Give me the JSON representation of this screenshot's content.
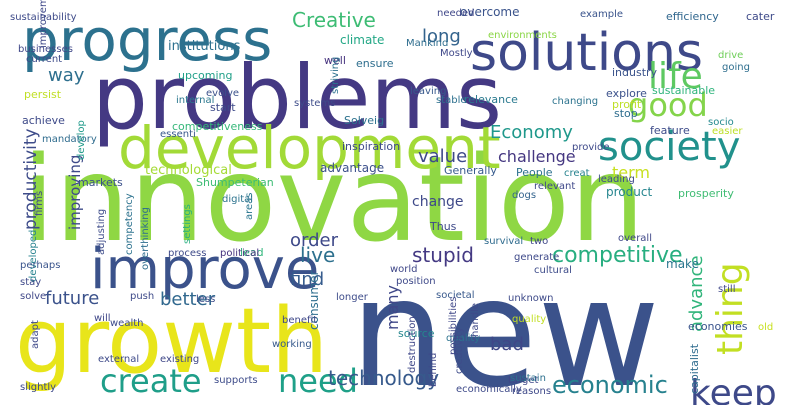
{
  "words": [
    {
      "text": "innovation",
      "color": "#8fd744",
      "orient": "h"
    },
    {
      "text": "new",
      "color": "#3b528b",
      "orient": "h"
    },
    {
      "text": "problems",
      "color": "#443983",
      "orient": "h"
    },
    {
      "text": "growth",
      "color": "#e8e51a",
      "orient": "h"
    },
    {
      "text": "development",
      "color": "#a2da37",
      "orient": "h"
    },
    {
      "text": "solutions",
      "color": "#3e4989",
      "orient": "h"
    },
    {
      "text": "progress",
      "color": "#2c718e",
      "orient": "h"
    },
    {
      "text": "improve",
      "color": "#3b528b",
      "orient": "h"
    },
    {
      "text": "society",
      "color": "#21918c",
      "orient": "h"
    },
    {
      "text": "life",
      "color": "#5ec962",
      "orient": "h"
    },
    {
      "text": "create",
      "color": "#1f9e89",
      "orient": "h"
    },
    {
      "text": "need",
      "color": "#1fa088",
      "orient": "h"
    },
    {
      "text": "keep",
      "color": "#3e4989",
      "orient": "h"
    },
    {
      "text": "good",
      "color": "#84d44b",
      "orient": "h"
    },
    {
      "text": "thing",
      "color": "#c2df23",
      "orient": "v"
    },
    {
      "text": "economic",
      "color": "#26818e",
      "orient": "h"
    },
    {
      "text": "technology",
      "color": "#375a8c",
      "orient": "h"
    },
    {
      "text": "competitive",
      "color": "#28ae80",
      "orient": "h"
    },
    {
      "text": "Economy",
      "color": "#1f988b",
      "orient": "h"
    },
    {
      "text": "future",
      "color": "#3b528b",
      "orient": "h"
    },
    {
      "text": "better",
      "color": "#31688e",
      "orient": "h"
    },
    {
      "text": "stupid",
      "color": "#443983",
      "orient": "h"
    },
    {
      "text": "Creative",
      "color": "#3dbc74",
      "orient": "h"
    },
    {
      "text": "long",
      "color": "#33638d",
      "orient": "h"
    },
    {
      "text": "way",
      "color": "#2e6f8e",
      "orient": "h"
    },
    {
      "text": "live",
      "color": "#2d708e",
      "orient": "h"
    },
    {
      "text": "value",
      "color": "#3e4a89",
      "orient": "h"
    },
    {
      "text": "find",
      "color": "#365c8d",
      "orient": "h"
    },
    {
      "text": "order",
      "color": "#3e4989",
      "orient": "h"
    },
    {
      "text": "many",
      "color": "#3f4788",
      "orient": "v"
    },
    {
      "text": "bad",
      "color": "#3f4788",
      "orient": "h"
    },
    {
      "text": "advance",
      "color": "#31b57b",
      "orient": "v"
    },
    {
      "text": "productivity",
      "color": "#3e4c8a",
      "orient": "v"
    },
    {
      "text": "improving",
      "color": "#3e4a89",
      "orient": "v"
    },
    {
      "text": "challenge",
      "color": "#453781",
      "orient": "h"
    },
    {
      "text": "term",
      "color": "#c8e020",
      "orient": "h"
    },
    {
      "text": "change",
      "color": "#3e4989",
      "orient": "h"
    },
    {
      "text": "technological",
      "color": "#a5db36",
      "orient": "h"
    },
    {
      "text": "advantage",
      "color": "#3c508b",
      "orient": "h"
    },
    {
      "text": "institutions",
      "color": "#2d708e",
      "orient": "h"
    },
    {
      "text": "climate",
      "color": "#22a785",
      "orient": "h"
    },
    {
      "text": "profit",
      "color": "#bddf26",
      "orient": "h"
    },
    {
      "text": "product",
      "color": "#25858e",
      "orient": "h"
    },
    {
      "text": "make",
      "color": "#2a768e",
      "orient": "h"
    },
    {
      "text": "overcome",
      "color": "#3a538b",
      "orient": "h"
    },
    {
      "text": "consumer",
      "color": "#2e6e8e",
      "orient": "v"
    },
    {
      "text": "source",
      "color": "#24868e",
      "orient": "h"
    },
    {
      "text": "upcoming",
      "color": "#1f9f88",
      "orient": "h"
    },
    {
      "text": "competitiveness",
      "color": "#35b779",
      "orient": "h"
    },
    {
      "text": "sustainable",
      "color": "#2fb47c",
      "orient": "h"
    },
    {
      "text": "efficiency",
      "color": "#31678e",
      "orient": "h"
    },
    {
      "text": "cater",
      "color": "#3e4a89",
      "orient": "h"
    },
    {
      "text": "drive",
      "color": "#6ece58",
      "orient": "h"
    },
    {
      "text": "going",
      "color": "#2e6e8e",
      "orient": "h"
    },
    {
      "text": "industry",
      "color": "#3a538b",
      "orient": "h"
    },
    {
      "text": "explore",
      "color": "#3b518b",
      "orient": "h"
    },
    {
      "text": "stop",
      "color": "#2e6d8e",
      "orient": "h"
    },
    {
      "text": "socio",
      "color": "#23898e",
      "orient": "h"
    },
    {
      "text": "feature",
      "color": "#3e4c8a",
      "orient": "h"
    },
    {
      "text": "easier",
      "color": "#bddf26",
      "orient": "h"
    },
    {
      "text": "Shumpeterian",
      "color": "#3dbc74",
      "orient": "h"
    },
    {
      "text": "Generally",
      "color": "#375b8d",
      "orient": "h"
    },
    {
      "text": "People",
      "color": "#2c718e",
      "orient": "h"
    },
    {
      "text": "creat",
      "color": "#26828e",
      "orient": "h"
    },
    {
      "text": "leading",
      "color": "#3e4c8a",
      "orient": "h"
    },
    {
      "text": "prosperity",
      "color": "#3fbc73",
      "orient": "h"
    },
    {
      "text": "relevant",
      "color": "#3f4889",
      "orient": "h"
    },
    {
      "text": "dogs",
      "color": "#33638d",
      "orient": "h"
    },
    {
      "text": "provide",
      "color": "#3e4989",
      "orient": "h"
    },
    {
      "text": "changing",
      "color": "#2c738e",
      "orient": "h"
    },
    {
      "text": "leaving",
      "color": "#38598c",
      "orient": "h"
    },
    {
      "text": "stable",
      "color": "#2d708e",
      "orient": "h"
    },
    {
      "text": "relevance",
      "color": "#29798e",
      "orient": "h"
    },
    {
      "text": "Solveig",
      "color": "#2c728e",
      "orient": "h"
    },
    {
      "text": "inspiration",
      "color": "#3e4a89",
      "orient": "h"
    },
    {
      "text": "ensure",
      "color": "#2e6e8e",
      "orient": "h"
    },
    {
      "text": "Mostly",
      "color": "#3f4889",
      "orient": "h"
    },
    {
      "text": "Mankind",
      "color": "#2e6d8e",
      "orient": "h"
    },
    {
      "text": "environments",
      "color": "#8bd646",
      "orient": "h"
    },
    {
      "text": "example",
      "color": "#3a548c",
      "orient": "h"
    },
    {
      "text": "needed",
      "color": "#3f4788",
      "orient": "h"
    },
    {
      "text": "well",
      "color": "#46327e",
      "orient": "h"
    },
    {
      "text": "evolve",
      "color": "#3b518b",
      "orient": "h"
    },
    {
      "text": "start",
      "color": "#3e4a89",
      "orient": "h"
    },
    {
      "text": "systems",
      "color": "#3e4c8a",
      "orient": "h"
    },
    {
      "text": "striving",
      "color": "#2c728e",
      "orient": "v"
    },
    {
      "text": "internal",
      "color": "#2a778e",
      "orient": "h"
    },
    {
      "text": "persist",
      "color": "#c0df25",
      "orient": "h"
    },
    {
      "text": "achieve",
      "color": "#3e4a89",
      "orient": "h"
    },
    {
      "text": "mandatory",
      "color": "#2f6c8e",
      "orient": "h"
    },
    {
      "text": "essenti",
      "color": "#38588c",
      "orient": "h"
    },
    {
      "text": "improvement",
      "color": "#3f4889",
      "orient": "v"
    },
    {
      "text": "current",
      "color": "#3e4c8a",
      "orient": "h"
    },
    {
      "text": "businesses",
      "color": "#3f4788",
      "orient": "h"
    },
    {
      "text": "develop",
      "color": "#1f9a8a",
      "orient": "v"
    },
    {
      "text": "markets",
      "color": "#3b518b",
      "orient": "h"
    },
    {
      "text": "digital",
      "color": "#2c738e",
      "orient": "h"
    },
    {
      "text": "adjusting",
      "color": "#3e4c8a",
      "orient": "v"
    },
    {
      "text": "overthinking",
      "color": "#2e6e8e",
      "orient": "v"
    },
    {
      "text": "firms",
      "color": "#3e4989",
      "orient": "v"
    },
    {
      "text": "developed",
      "color": "#26828e",
      "orient": "v"
    },
    {
      "text": "areas",
      "color": "#2a768e",
      "orient": "v"
    },
    {
      "text": "settings",
      "color": "#29af7f",
      "orient": "v"
    },
    {
      "text": "lead",
      "color": "#31b57b",
      "orient": "h"
    },
    {
      "text": "Thus",
      "color": "#3e4989",
      "orient": "h"
    },
    {
      "text": "working",
      "color": "#375a8c",
      "orient": "h"
    },
    {
      "text": "survival",
      "color": "#2f6b8e",
      "orient": "h"
    },
    {
      "text": "two",
      "color": "#3f4788",
      "orient": "h"
    },
    {
      "text": "overall",
      "color": "#3f4788",
      "orient": "h"
    },
    {
      "text": "still",
      "color": "#3f4788",
      "orient": "h"
    },
    {
      "text": "competency",
      "color": "#2c728e",
      "orient": "v"
    },
    {
      "text": "process",
      "color": "#3e4a89",
      "orient": "h"
    },
    {
      "text": "political",
      "color": "#46327e",
      "orient": "h"
    },
    {
      "text": "perhaps",
      "color": "#3a548c",
      "orient": "h"
    },
    {
      "text": "stay",
      "color": "#3e4989",
      "orient": "h"
    },
    {
      "text": "solve",
      "color": "#3f4788",
      "orient": "h"
    },
    {
      "text": "push",
      "color": "#3e4a89",
      "orient": "h"
    },
    {
      "text": "less",
      "color": "#3e4c8a",
      "orient": "h"
    },
    {
      "text": "benefit",
      "color": "#3f4889",
      "orient": "h"
    },
    {
      "text": "longer",
      "color": "#3e4c8a",
      "orient": "h"
    },
    {
      "text": "world",
      "color": "#3f4788",
      "orient": "h"
    },
    {
      "text": "position",
      "color": "#3e4989",
      "orient": "h"
    },
    {
      "text": "societal",
      "color": "#38598c",
      "orient": "h"
    },
    {
      "text": "generate",
      "color": "#3e4989",
      "orient": "h"
    },
    {
      "text": "cultural",
      "color": "#3e4c8a",
      "orient": "h"
    },
    {
      "text": "unknown",
      "color": "#3e4a89",
      "orient": "h"
    },
    {
      "text": "quality",
      "color": "#c2df23",
      "orient": "h"
    },
    {
      "text": "target",
      "color": "#3f4788",
      "orient": "h"
    },
    {
      "text": "economies",
      "color": "#3a548c",
      "orient": "h"
    },
    {
      "text": "old",
      "color": "#c8e020",
      "orient": "h"
    },
    {
      "text": "capitalist",
      "color": "#2f6c8e",
      "orient": "v"
    },
    {
      "text": "quality",
      "color": "#2c728e",
      "orient": "h"
    },
    {
      "text": "handle",
      "color": "#3e4a89",
      "orient": "v"
    },
    {
      "text": "behind",
      "color": "#3f4788",
      "orient": "v"
    },
    {
      "text": "destruction",
      "color": "#3f4788",
      "orient": "v"
    },
    {
      "text": "creativity",
      "color": "#3e4c8a",
      "orient": "v"
    },
    {
      "text": "possibilities",
      "color": "#3f4788",
      "orient": "v"
    },
    {
      "text": "sustain",
      "color": "#2d708e",
      "orient": "h"
    },
    {
      "text": "reasons",
      "color": "#3e4989",
      "orient": "h"
    },
    {
      "text": "economically",
      "color": "#3e4a89",
      "orient": "h"
    },
    {
      "text": "wealth",
      "color": "#3e4c8a",
      "orient": "h"
    },
    {
      "text": "will",
      "color": "#3f4788",
      "orient": "h"
    },
    {
      "text": "adapt",
      "color": "#3e4989",
      "orient": "v"
    },
    {
      "text": "external",
      "color": "#3e4a89",
      "orient": "h"
    },
    {
      "text": "existing",
      "color": "#3f4788",
      "orient": "h"
    },
    {
      "text": "supports",
      "color": "#3e4c8a",
      "orient": "h"
    },
    {
      "text": "slightly",
      "color": "#3e4989",
      "orient": "h"
    },
    {
      "text": "sustainability",
      "color": "#3e4a89",
      "orient": "h"
    }
  ]
}
